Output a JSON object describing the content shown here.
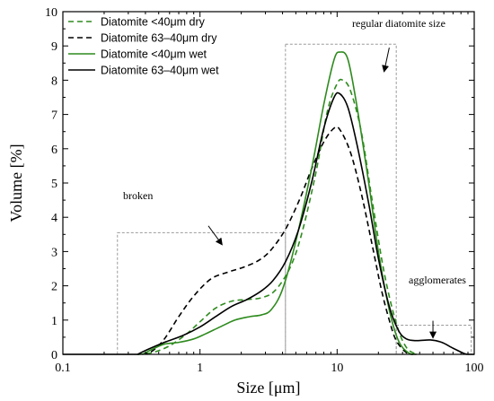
{
  "chart_data": {
    "type": "line",
    "xlabel": "Size [μm]",
    "ylabel": "Volume [%]",
    "x_scale": "log",
    "xlim": [
      0.1,
      100
    ],
    "ylim": [
      0,
      10
    ],
    "x_ticks": [
      "0.1",
      "1",
      "10",
      "100"
    ],
    "y_ticks": [
      "0",
      "1",
      "2",
      "3",
      "4",
      "5",
      "6",
      "7",
      "8",
      "9",
      "10"
    ],
    "grid": false,
    "legend_position": "top-left",
    "series": [
      {
        "name": "Diatomite <40μm dry",
        "color": "#2e8b1e",
        "dash": true,
        "points": [
          [
            0.35,
            0
          ],
          [
            0.45,
            0.05
          ],
          [
            0.6,
            0.25
          ],
          [
            0.8,
            0.6
          ],
          [
            1,
            0.95
          ],
          [
            1.3,
            1.35
          ],
          [
            1.7,
            1.55
          ],
          [
            2.2,
            1.6
          ],
          [
            2.8,
            1.65
          ],
          [
            3.5,
            1.85
          ],
          [
            4.5,
            2.5
          ],
          [
            5.5,
            3.5
          ],
          [
            7,
            5.3
          ],
          [
            8.5,
            7.1
          ],
          [
            10,
            7.9
          ],
          [
            11,
            8
          ],
          [
            12.5,
            7.7
          ],
          [
            15,
            6.5
          ],
          [
            18,
            4.5
          ],
          [
            22,
            2.4
          ],
          [
            27,
            0.9
          ],
          [
            32,
            0.2
          ],
          [
            38,
            0
          ]
        ]
      },
      {
        "name": "Diatomite 63–40μm dry",
        "color": "#000000",
        "dash": true,
        "points": [
          [
            0.38,
            0
          ],
          [
            0.45,
            0.1
          ],
          [
            0.55,
            0.45
          ],
          [
            0.7,
            1.1
          ],
          [
            0.9,
            1.7
          ],
          [
            1.2,
            2.2
          ],
          [
            1.6,
            2.4
          ],
          [
            2.1,
            2.55
          ],
          [
            2.7,
            2.75
          ],
          [
            3.3,
            3.05
          ],
          [
            4.2,
            3.65
          ],
          [
            5.3,
            4.5
          ],
          [
            6.5,
            5.4
          ],
          [
            8,
            6.2
          ],
          [
            9.5,
            6.6
          ],
          [
            10.5,
            6.55
          ],
          [
            12.5,
            5.9
          ],
          [
            15,
            4.7
          ],
          [
            18,
            3.2
          ],
          [
            21,
            1.9
          ],
          [
            24,
            1.0
          ],
          [
            27,
            0.4
          ],
          [
            32,
            0.05
          ],
          [
            36,
            0
          ]
        ]
      },
      {
        "name": "Diatomite <40μm wet",
        "color": "#2e8b1e",
        "dash": false,
        "points": [
          [
            0.38,
            0
          ],
          [
            0.45,
            0.15
          ],
          [
            0.55,
            0.3
          ],
          [
            0.7,
            0.35
          ],
          [
            0.9,
            0.45
          ],
          [
            1.1,
            0.6
          ],
          [
            1.4,
            0.8
          ],
          [
            1.8,
            1.0
          ],
          [
            2.3,
            1.1
          ],
          [
            2.8,
            1.15
          ],
          [
            3.3,
            1.3
          ],
          [
            4,
            1.9
          ],
          [
            5,
            3.3
          ],
          [
            6.5,
            5.4
          ],
          [
            8,
            7.3
          ],
          [
            9.5,
            8.6
          ],
          [
            10.5,
            8.82
          ],
          [
            12,
            8.6
          ],
          [
            14,
            7.2
          ],
          [
            17,
            5.0
          ],
          [
            20,
            3.0
          ],
          [
            24,
            1.3
          ],
          [
            28,
            0.4
          ],
          [
            33,
            0.05
          ],
          [
            38,
            0
          ]
        ]
      },
      {
        "name": "Diatomite 63–40μm wet",
        "color": "#000000",
        "dash": false,
        "points": [
          [
            0.35,
            0
          ],
          [
            0.42,
            0.15
          ],
          [
            0.55,
            0.35
          ],
          [
            0.75,
            0.55
          ],
          [
            1,
            0.8
          ],
          [
            1.3,
            1.1
          ],
          [
            1.7,
            1.4
          ],
          [
            2.2,
            1.6
          ],
          [
            2.8,
            1.85
          ],
          [
            3.4,
            2.15
          ],
          [
            4.2,
            2.7
          ],
          [
            5.2,
            3.6
          ],
          [
            6.5,
            5.0
          ],
          [
            8,
            6.6
          ],
          [
            9.5,
            7.5
          ],
          [
            10.5,
            7.6
          ],
          [
            12,
            7.2
          ],
          [
            14,
            6.1
          ],
          [
            17,
            4.4
          ],
          [
            20,
            2.8
          ],
          [
            24,
            1.4
          ],
          [
            28,
            0.7
          ],
          [
            32,
            0.45
          ],
          [
            38,
            0.4
          ],
          [
            48,
            0.42
          ],
          [
            58,
            0.35
          ],
          [
            70,
            0.18
          ],
          [
            85,
            0.02
          ],
          [
            92,
            0
          ]
        ]
      }
    ],
    "annotations": [
      {
        "label": "broken",
        "box_x": [
          0.25,
          4.2
        ],
        "box_y": [
          0,
          3.55
        ],
        "arrow_from": [
          1.15,
          3.75
        ],
        "arrow_to": [
          1.45,
          3.2
        ]
      },
      {
        "label": "regular diatomite size",
        "box_x": [
          4.2,
          27
        ],
        "box_y": [
          0,
          9.05
        ],
        "arrow_from": [
          24,
          8.95
        ],
        "arrow_to": [
          22,
          8.25
        ]
      },
      {
        "label": "agglomerates",
        "box_x": [
          27,
          95
        ],
        "box_y": [
          0,
          0.85
        ],
        "arrow_from": [
          50,
          0.98
        ],
        "arrow_to": [
          50,
          0.48
        ]
      }
    ]
  }
}
